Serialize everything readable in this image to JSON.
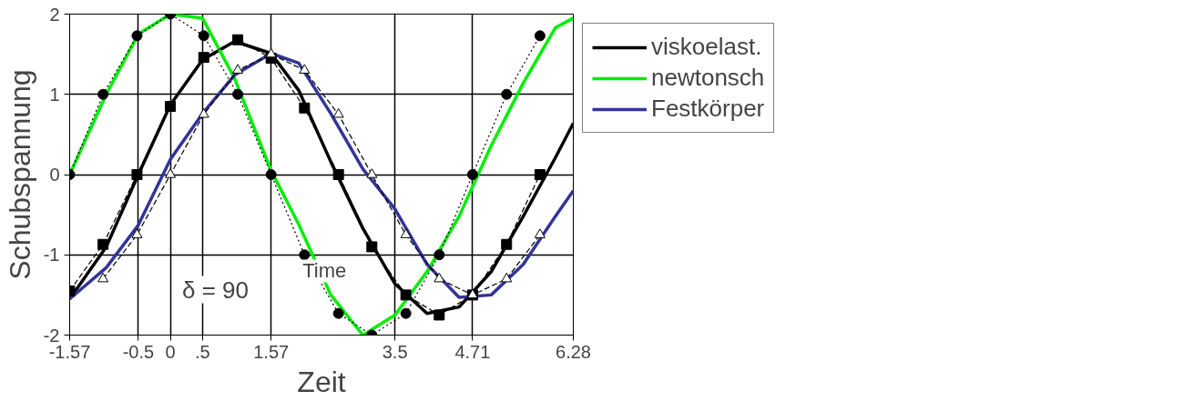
{
  "chart_data": {
    "type": "line",
    "xlabel": "Zeit",
    "ylabel": "Schubspannung",
    "x": [
      -1.57,
      -1.0,
      -0.5,
      0,
      0.5,
      1.0,
      1.57,
      2.0,
      2.5,
      3.0,
      3.5,
      4.0,
      4.5,
      5.0,
      5.5,
      6.0,
      6.28
    ],
    "series": [
      {
        "name": "viskoelast.",
        "color": "#000000",
        "line_style": "solid",
        "marker": "none",
        "values": [
          -1.55,
          -0.9,
          0.0,
          0.87,
          1.43,
          1.66,
          1.51,
          1.05,
          0.16,
          -0.67,
          -1.36,
          -1.73,
          -1.65,
          -1.21,
          -0.52,
          0.21,
          0.64
        ]
      },
      {
        "name": "newtonsch",
        "color": "#00ee00",
        "line_style": "solid",
        "marker": "none",
        "values": [
          0.0,
          1.0,
          1.75,
          2.0,
          1.95,
          1.2,
          0.05,
          -0.62,
          -1.5,
          -2.0,
          -1.75,
          -1.21,
          -0.52,
          0.36,
          1.14,
          1.83,
          1.95
        ]
      },
      {
        "name": "Festkörper",
        "color": "#333399",
        "line_style": "solid",
        "marker": "none",
        "values": [
          -1.55,
          -1.16,
          -0.63,
          0.19,
          0.76,
          1.24,
          1.51,
          1.39,
          0.76,
          0.07,
          -0.43,
          -1.12,
          -1.53,
          -1.5,
          -1.12,
          -0.52,
          -0.2
        ]
      },
      {
        "color": "#000000",
        "line_style": "dashed",
        "marker": "square",
        "x": [
          -1.57,
          -1.05,
          -0.52,
          0,
          0.52,
          1.05,
          1.57,
          2.09,
          2.62,
          3.14,
          3.67,
          4.19,
          4.71,
          5.24,
          5.76
        ],
        "values": [
          -1.45,
          -0.87,
          0.0,
          0.85,
          1.46,
          1.68,
          1.45,
          0.83,
          0.0,
          -0.9,
          -1.5,
          -1.75,
          -1.5,
          -0.87,
          0.0
        ]
      },
      {
        "color": "#000000",
        "line_style": "dotted",
        "marker": "circle",
        "x": [
          -1.57,
          -1.05,
          -0.52,
          0,
          0.52,
          1.05,
          1.57,
          2.09,
          2.62,
          3.14,
          3.67,
          4.19,
          4.71,
          5.24,
          5.76
        ],
        "values": [
          0.0,
          1.0,
          1.73,
          2.0,
          1.73,
          1.0,
          0.0,
          -1.0,
          -1.73,
          -2.0,
          -1.73,
          -1.0,
          0.0,
          1.0,
          1.73
        ]
      },
      {
        "color": "#000000",
        "line_style": "dashed",
        "marker": "triangle",
        "x": [
          -1.05,
          -0.52,
          0,
          0.52,
          1.05,
          1.57,
          2.09,
          2.62,
          3.14,
          3.67,
          4.19,
          4.71,
          5.24,
          5.76
        ],
        "values": [
          -1.3,
          -0.75,
          0.0,
          0.75,
          1.3,
          1.5,
          1.3,
          0.75,
          0.0,
          -0.75,
          -1.3,
          -1.5,
          -1.3,
          -0.75
        ]
      }
    ],
    "xlim": [
      -1.57,
      6.28
    ],
    "ylim": [
      -2,
      2
    ],
    "xticks": [
      -1.57,
      -0.5,
      0,
      {
        "value": 0.5,
        "label": ".5"
      },
      1.57,
      3.5,
      4.71,
      6.28
    ],
    "yticks": [
      -2,
      -1,
      0,
      1,
      2
    ],
    "grid": true,
    "legend": "right",
    "annotations": [
      "δ = 90",
      {
        "text": "Time",
        "x": 2.4,
        "y": -1.2
      }
    ]
  }
}
